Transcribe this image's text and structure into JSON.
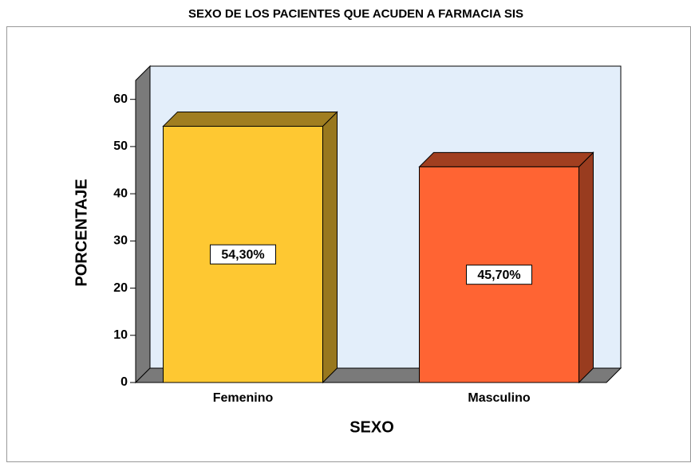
{
  "chart_data": {
    "type": "bar3d",
    "title": "SEXO DE LOS PACIENTES  QUE ACUDEN A FARMACIA SIS",
    "x_label": "SEXO",
    "y_label": "PORCENTAJE",
    "categories": [
      "Femenino",
      "Masculino"
    ],
    "values": [
      54.3,
      45.7
    ],
    "value_labels": [
      "54,30%",
      "45,70%"
    ],
    "colors": [
      "#fec832",
      "#ff6433"
    ],
    "ylim": [
      0,
      64
    ],
    "yticks": [
      0,
      10,
      20,
      30,
      40,
      50,
      60
    ],
    "wall_color": "#e3eefa"
  }
}
